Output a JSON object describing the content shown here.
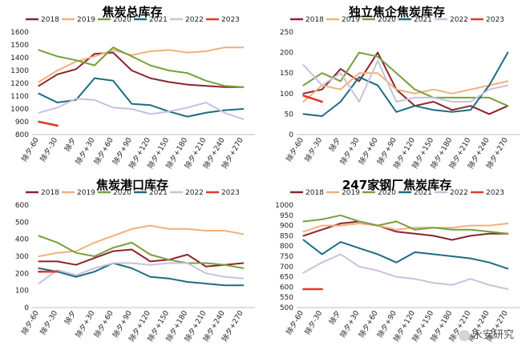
{
  "chart_data": [
    {
      "type": "line",
      "title": "焦炭总库存",
      "ylim": [
        800,
        1600
      ],
      "yticks": [
        800,
        900,
        1000,
        1100,
        1200,
        1300,
        1400,
        1500,
        1600
      ],
      "categories": [
        "除夕-60",
        "除夕-30",
        "除夕",
        "除夕+30",
        "除夕+60",
        "除夕+90",
        "除夕+120",
        "除夕+150",
        "除夕+180",
        "除夕+210",
        "除夕+240",
        "除夕+270"
      ],
      "legend_position": "top",
      "series": [
        {
          "name": "2018",
          "color": "#8b2430",
          "values": [
            1180,
            1270,
            1310,
            1430,
            1440,
            1300,
            1240,
            1210,
            1190,
            1180,
            1170,
            1170
          ]
        },
        {
          "name": "2019",
          "color": "#f2b07c",
          "values": [
            1210,
            1300,
            1370,
            1410,
            1460,
            1420,
            1450,
            1460,
            1440,
            1450,
            1480,
            1480
          ]
        },
        {
          "name": "2020",
          "color": "#77a03a",
          "values": [
            1460,
            1410,
            1380,
            1340,
            1480,
            1410,
            1340,
            1300,
            1280,
            1220,
            1180,
            1170
          ]
        },
        {
          "name": "2021",
          "color": "#1e6b83",
          "values": [
            1120,
            1050,
            1070,
            1240,
            1220,
            1040,
            1030,
            980,
            940,
            970,
            990,
            1000
          ]
        },
        {
          "name": "2022",
          "color": "#c9c1dc",
          "values": [
            970,
            1010,
            1080,
            1070,
            1010,
            1000,
            960,
            980,
            1010,
            1050,
            970,
            920
          ]
        },
        {
          "name": "2023",
          "color": "#e03a2a",
          "values": [
            900,
            870,
            null,
            null,
            null,
            null,
            null,
            null,
            null,
            null,
            null,
            null
          ]
        }
      ]
    },
    {
      "type": "line",
      "title": "独立焦企焦炭库存",
      "ylim": [
        0,
        250
      ],
      "yticks": [
        0,
        50,
        100,
        150,
        200,
        250
      ],
      "categories": [
        "除夕-60",
        "除夕-30",
        "除夕",
        "除夕+30",
        "除夕+60",
        "除夕+90",
        "除夕+120",
        "除夕+150",
        "除夕+180",
        "除夕+210",
        "除夕+240",
        "除夕+270"
      ],
      "legend_position": "top",
      "series": [
        {
          "name": "2018",
          "color": "#8b2430",
          "values": [
            100,
            110,
            160,
            130,
            200,
            110,
            70,
            80,
            60,
            70,
            50,
            70
          ]
        },
        {
          "name": "2019",
          "color": "#f2b07c",
          "values": [
            80,
            120,
            110,
            150,
            150,
            110,
            100,
            110,
            100,
            110,
            120,
            130
          ]
        },
        {
          "name": "2020",
          "color": "#77a03a",
          "values": [
            120,
            150,
            130,
            200,
            190,
            150,
            110,
            90,
            90,
            90,
            90,
            70
          ]
        },
        {
          "name": "2021",
          "color": "#1e6b83",
          "values": [
            50,
            45,
            80,
            140,
            120,
            55,
            70,
            60,
            55,
            60,
            120,
            200
          ]
        },
        {
          "name": "2022",
          "color": "#c9c1dc",
          "values": [
            170,
            120,
            150,
            80,
            180,
            80,
            90,
            90,
            80,
            80,
            110,
            120
          ]
        },
        {
          "name": "2023",
          "color": "#e03a2a",
          "values": [
            95,
            80,
            null,
            null,
            null,
            null,
            null,
            null,
            null,
            null,
            null,
            null
          ]
        }
      ]
    },
    {
      "type": "line",
      "title": "焦炭港口库存",
      "ylim": [
        0,
        600
      ],
      "yticks": [
        0,
        100,
        200,
        300,
        400,
        500,
        600
      ],
      "categories": [
        "除夕-60",
        "除夕-30",
        "除夕",
        "除夕+30",
        "除夕+60",
        "除夕+90",
        "除夕+120",
        "除夕+150",
        "除夕+180",
        "除夕+210",
        "除夕+240",
        "除夕+270"
      ],
      "legend_position": "top",
      "series": [
        {
          "name": "2018",
          "color": "#8b2430",
          "values": [
            270,
            270,
            250,
            290,
            330,
            340,
            270,
            280,
            310,
            240,
            250,
            260
          ]
        },
        {
          "name": "2019",
          "color": "#f2b07c",
          "values": [
            300,
            320,
            330,
            380,
            420,
            460,
            480,
            460,
            460,
            450,
            450,
            430
          ]
        },
        {
          "name": "2020",
          "color": "#77a03a",
          "values": [
            420,
            380,
            320,
            300,
            350,
            380,
            310,
            280,
            260,
            260,
            250,
            230
          ]
        },
        {
          "name": "2021",
          "color": "#1e6b83",
          "values": [
            230,
            210,
            180,
            210,
            260,
            230,
            180,
            170,
            150,
            140,
            130,
            130
          ]
        },
        {
          "name": "2022",
          "color": "#c9c1dc",
          "values": [
            140,
            220,
            190,
            230,
            260,
            260,
            250,
            260,
            260,
            200,
            180,
            170
          ]
        },
        {
          "name": "2023",
          "color": "#e03a2a",
          "values": [
            210,
            210,
            null,
            null,
            null,
            null,
            null,
            null,
            null,
            null,
            null,
            null
          ]
        }
      ]
    },
    {
      "type": "line",
      "title": "247家钢厂焦炭库存",
      "ylim": [
        500,
        1000
      ],
      "yticks": [
        500,
        550,
        600,
        650,
        700,
        750,
        800,
        850,
        900,
        950,
        1000
      ],
      "categories": [
        "除夕-60",
        "除夕-30",
        "除夕",
        "除夕+30",
        "除夕+60",
        "除夕+90",
        "除夕+120",
        "除夕+150",
        "除夕+180",
        "除夕+210",
        "除夕+240",
        "除夕+270"
      ],
      "legend_position": "top",
      "series": [
        {
          "name": "2018",
          "color": "#8b2430",
          "values": [
            850,
            880,
            910,
            920,
            900,
            870,
            860,
            850,
            830,
            850,
            860,
            860
          ]
        },
        {
          "name": "2019",
          "color": "#f2b07c",
          "values": [
            870,
            900,
            900,
            910,
            900,
            880,
            890,
            890,
            890,
            900,
            900,
            910
          ]
        },
        {
          "name": "2020",
          "color": "#77a03a",
          "values": [
            920,
            930,
            950,
            920,
            900,
            920,
            880,
            890,
            880,
            880,
            870,
            860
          ]
        },
        {
          "name": "2021",
          "color": "#1e6b83",
          "values": [
            830,
            760,
            820,
            790,
            760,
            720,
            770,
            760,
            750,
            740,
            720,
            690
          ]
        },
        {
          "name": "2022",
          "color": "#c9c1dc",
          "values": [
            670,
            720,
            760,
            700,
            680,
            650,
            640,
            620,
            610,
            640,
            610,
            590
          ]
        },
        {
          "name": "2023",
          "color": "#e03a2a",
          "values": [
            590,
            590,
            null,
            null,
            null,
            null,
            null,
            null,
            null,
            null,
            null,
            null
          ]
        }
      ]
    }
  ],
  "watermark": {
    "text": "永安研究"
  }
}
